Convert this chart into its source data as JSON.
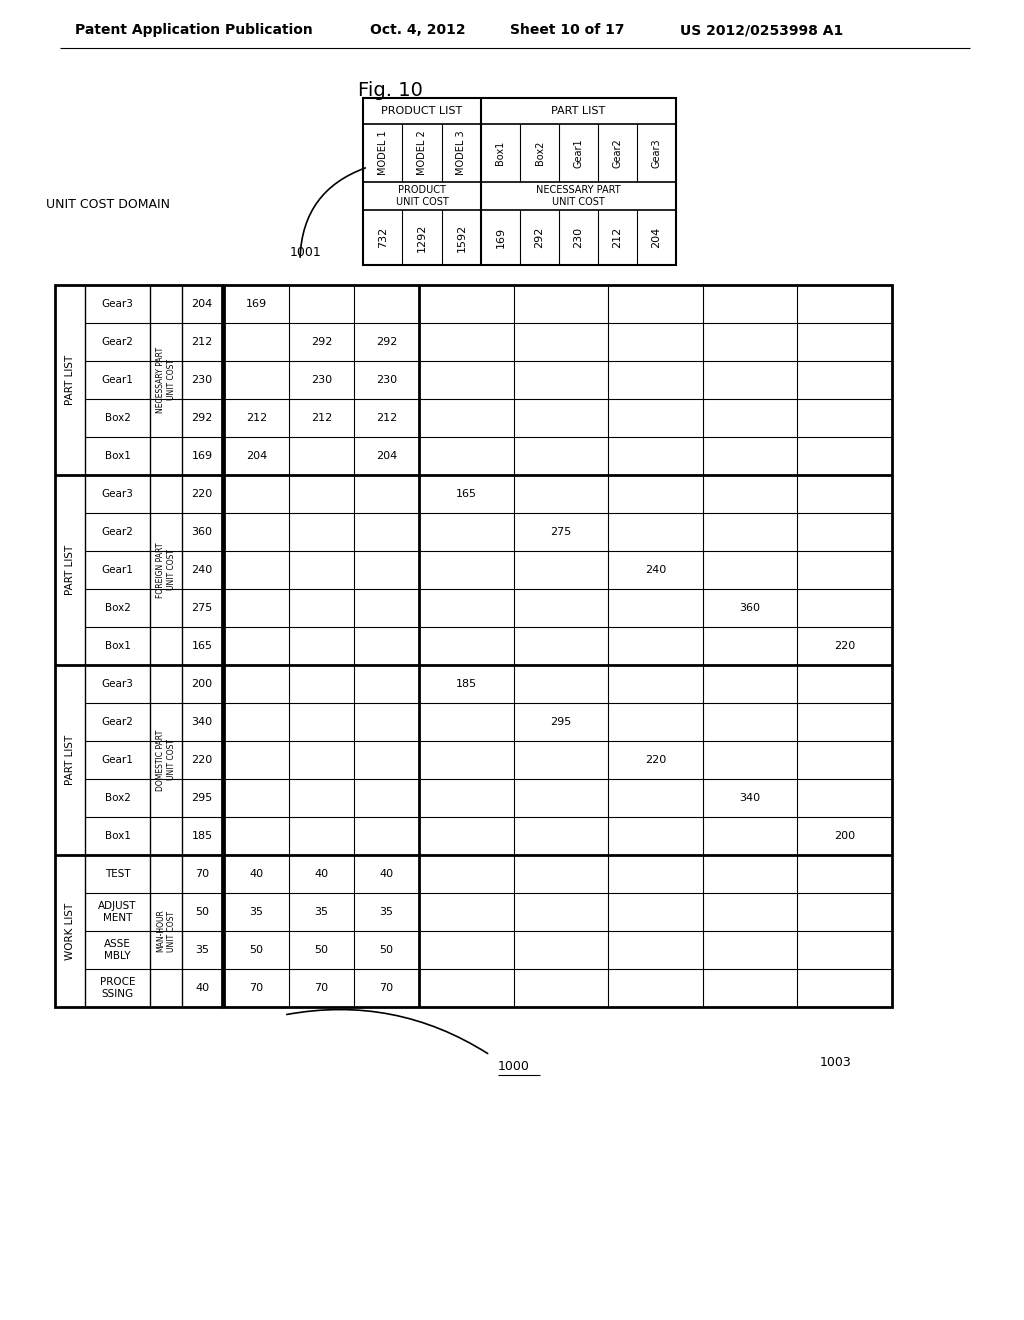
{
  "header_left": "Patent Application Publication",
  "header_date": "Oct. 4, 2012",
  "header_sheet": "Sheet 10 of 17",
  "header_patent": "US 2012/0253998 A1",
  "fig_label": "Fig. 10",
  "unit_cost_domain": "UNIT COST DOMAIN",
  "top_models": [
    "MODEL 1",
    "MODEL 2",
    "MODEL 3"
  ],
  "top_parts": [
    "Box1",
    "Box2",
    "Gear1",
    "Gear2",
    "Gear3"
  ],
  "top_product_costs": [
    "732",
    "1292",
    "1592"
  ],
  "top_part_costs": [
    "169",
    "292",
    "230",
    "212",
    "204"
  ],
  "sec1_items": [
    "Box1",
    "Box2",
    "Gear1",
    "Gear2",
    "Gear3"
  ],
  "sec1_vals": [
    "169",
    "292",
    "230",
    "212",
    "204"
  ],
  "sec1_cat": "NECESSARY PART\nUNIT COST",
  "sec2_items": [
    "Box1",
    "Box2",
    "Gear1",
    "Gear2",
    "Gear3"
  ],
  "sec2_vals": [
    "165",
    "275",
    "240",
    "360",
    "220"
  ],
  "sec2_cat": "FOREIGN PART\nUNIT COST",
  "sec3_items": [
    "Box1",
    "Box2",
    "Gear1",
    "Gear2",
    "Gear3"
  ],
  "sec3_vals": [
    "185",
    "295",
    "220",
    "340",
    "200"
  ],
  "sec3_cat": "DOMESTIC PART\nUNIT COST",
  "sec4_items": [
    "PROCE\nSSING",
    "ASSE\nMBLY",
    "ADJUST\nMENT",
    "TEST"
  ],
  "sec4_vals": [
    "40",
    "35",
    "50",
    "70"
  ],
  "sec4_cat": "MAN-HOUR\nUNIT COST",
  "nec_grid": [
    [
      "169",
      "",
      ""
    ],
    [
      "",
      "292",
      "292"
    ],
    [
      "",
      "230",
      "230"
    ],
    [
      "212",
      "212",
      "212"
    ],
    [
      "204",
      "",
      "204"
    ]
  ],
  "for_grid": [
    [
      "165",
      "",
      "",
      "",
      ""
    ],
    [
      "",
      "275",
      "",
      "",
      ""
    ],
    [
      "",
      "",
      "240",
      "",
      ""
    ],
    [
      "",
      "",
      "",
      "360",
      ""
    ],
    [
      "",
      "",
      "",
      "",
      "220"
    ]
  ],
  "dom_grid": [
    [
      "185",
      "",
      "",
      "",
      ""
    ],
    [
      "",
      "295",
      "",
      "",
      ""
    ],
    [
      "",
      "",
      "220",
      "",
      ""
    ],
    [
      "",
      "",
      "",
      "340",
      ""
    ],
    [
      "",
      "",
      "",
      "",
      "200"
    ]
  ],
  "work_grid": [
    [
      "40",
      "40",
      "40"
    ],
    [
      "35",
      "35",
      "35"
    ],
    [
      "50",
      "50",
      "50"
    ],
    [
      "70",
      "70",
      "70"
    ]
  ]
}
